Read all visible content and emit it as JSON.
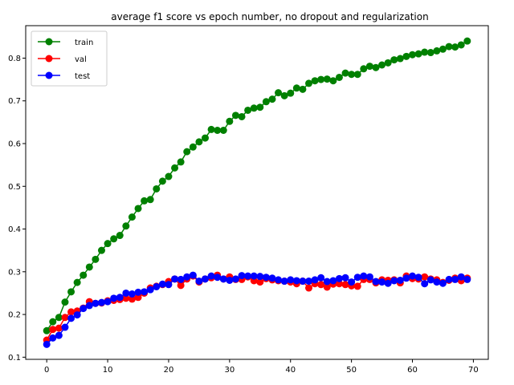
{
  "chart_data": {
    "type": "line",
    "title": "average f1 score vs epoch number, no dropout and regularization",
    "xlabel": "",
    "ylabel": "",
    "xlim": [
      -3.45,
      72.45
    ],
    "ylim": [
      0.095,
      0.876
    ],
    "xticks": [
      0,
      10,
      20,
      30,
      40,
      50,
      60,
      70
    ],
    "yticks": [
      0.1,
      0.2,
      0.3,
      0.4,
      0.5,
      0.6,
      0.7,
      0.8
    ],
    "grid": false,
    "legend_position": "top-left",
    "series": [
      {
        "name": "train",
        "color": "#008000",
        "x": [
          0,
          1,
          2,
          3,
          4,
          5,
          6,
          7,
          8,
          9,
          10,
          11,
          12,
          13,
          14,
          15,
          16,
          17,
          18,
          19,
          20,
          21,
          22,
          23,
          24,
          25,
          26,
          27,
          28,
          29,
          30,
          31,
          32,
          33,
          34,
          35,
          36,
          37,
          38,
          39,
          40,
          41,
          42,
          43,
          44,
          45,
          46,
          47,
          48,
          49,
          50,
          51,
          52,
          53,
          54,
          55,
          56,
          57,
          58,
          59,
          60,
          61,
          62,
          63,
          64,
          65,
          66,
          67,
          68,
          69
        ],
        "values": [
          0.162,
          0.183,
          0.193,
          0.229,
          0.253,
          0.275,
          0.292,
          0.311,
          0.329,
          0.35,
          0.366,
          0.377,
          0.385,
          0.407,
          0.428,
          0.448,
          0.466,
          0.469,
          0.494,
          0.512,
          0.523,
          0.543,
          0.557,
          0.581,
          0.592,
          0.604,
          0.613,
          0.633,
          0.631,
          0.631,
          0.652,
          0.666,
          0.663,
          0.678,
          0.683,
          0.685,
          0.698,
          0.704,
          0.719,
          0.712,
          0.718,
          0.73,
          0.727,
          0.741,
          0.747,
          0.75,
          0.751,
          0.747,
          0.755,
          0.765,
          0.762,
          0.762,
          0.775,
          0.781,
          0.778,
          0.784,
          0.789,
          0.796,
          0.799,
          0.804,
          0.808,
          0.81,
          0.814,
          0.813,
          0.817,
          0.821,
          0.827,
          0.826,
          0.831,
          0.84
        ]
      },
      {
        "name": "val",
        "color": "#ff0000",
        "x": [
          0,
          1,
          2,
          3,
          4,
          5,
          6,
          7,
          8,
          9,
          10,
          11,
          12,
          13,
          14,
          15,
          16,
          17,
          18,
          19,
          20,
          21,
          22,
          23,
          24,
          25,
          26,
          27,
          28,
          29,
          30,
          31,
          32,
          33,
          34,
          35,
          36,
          37,
          38,
          39,
          40,
          41,
          42,
          43,
          44,
          45,
          46,
          47,
          48,
          49,
          50,
          51,
          52,
          53,
          54,
          55,
          56,
          57,
          58,
          59,
          60,
          61,
          62,
          63,
          64,
          65,
          66,
          67,
          68,
          69
        ],
        "values": [
          0.14,
          0.165,
          0.168,
          0.193,
          0.206,
          0.208,
          0.215,
          0.23,
          0.226,
          0.227,
          0.232,
          0.233,
          0.235,
          0.238,
          0.236,
          0.24,
          0.25,
          0.262,
          0.266,
          0.27,
          0.277,
          0.283,
          0.268,
          0.283,
          0.29,
          0.276,
          0.283,
          0.286,
          0.292,
          0.283,
          0.288,
          0.282,
          0.282,
          0.288,
          0.279,
          0.276,
          0.284,
          0.281,
          0.279,
          0.278,
          0.276,
          0.272,
          0.278,
          0.262,
          0.272,
          0.27,
          0.264,
          0.271,
          0.272,
          0.27,
          0.267,
          0.266,
          0.282,
          0.282,
          0.274,
          0.281,
          0.28,
          0.281,
          0.274,
          0.29,
          0.284,
          0.283,
          0.288,
          0.283,
          0.281,
          0.275,
          0.28,
          0.285,
          0.279,
          0.285
        ]
      },
      {
        "name": "test",
        "color": "#0000ff",
        "x": [
          0,
          1,
          2,
          3,
          4,
          5,
          6,
          7,
          8,
          9,
          10,
          11,
          12,
          13,
          14,
          15,
          16,
          17,
          18,
          19,
          20,
          21,
          22,
          23,
          24,
          25,
          26,
          27,
          28,
          29,
          30,
          31,
          32,
          33,
          34,
          35,
          36,
          37,
          38,
          39,
          40,
          41,
          42,
          43,
          44,
          45,
          46,
          47,
          48,
          49,
          50,
          51,
          52,
          53,
          54,
          55,
          56,
          57,
          58,
          59,
          60,
          61,
          62,
          63,
          64,
          65,
          66,
          67,
          68,
          69
        ],
        "values": [
          0.13,
          0.145,
          0.151,
          0.17,
          0.191,
          0.199,
          0.214,
          0.221,
          0.226,
          0.228,
          0.23,
          0.238,
          0.24,
          0.25,
          0.248,
          0.252,
          0.253,
          0.258,
          0.265,
          0.271,
          0.27,
          0.283,
          0.282,
          0.288,
          0.292,
          0.278,
          0.283,
          0.29,
          0.287,
          0.283,
          0.28,
          0.283,
          0.291,
          0.29,
          0.29,
          0.289,
          0.287,
          0.285,
          0.281,
          0.278,
          0.281,
          0.279,
          0.278,
          0.278,
          0.281,
          0.286,
          0.277,
          0.279,
          0.284,
          0.286,
          0.276,
          0.287,
          0.29,
          0.288,
          0.277,
          0.276,
          0.273,
          0.279,
          0.28,
          0.285,
          0.29,
          0.287,
          0.272,
          0.281,
          0.276,
          0.273,
          0.282,
          0.282,
          0.288,
          0.282
        ]
      }
    ]
  }
}
